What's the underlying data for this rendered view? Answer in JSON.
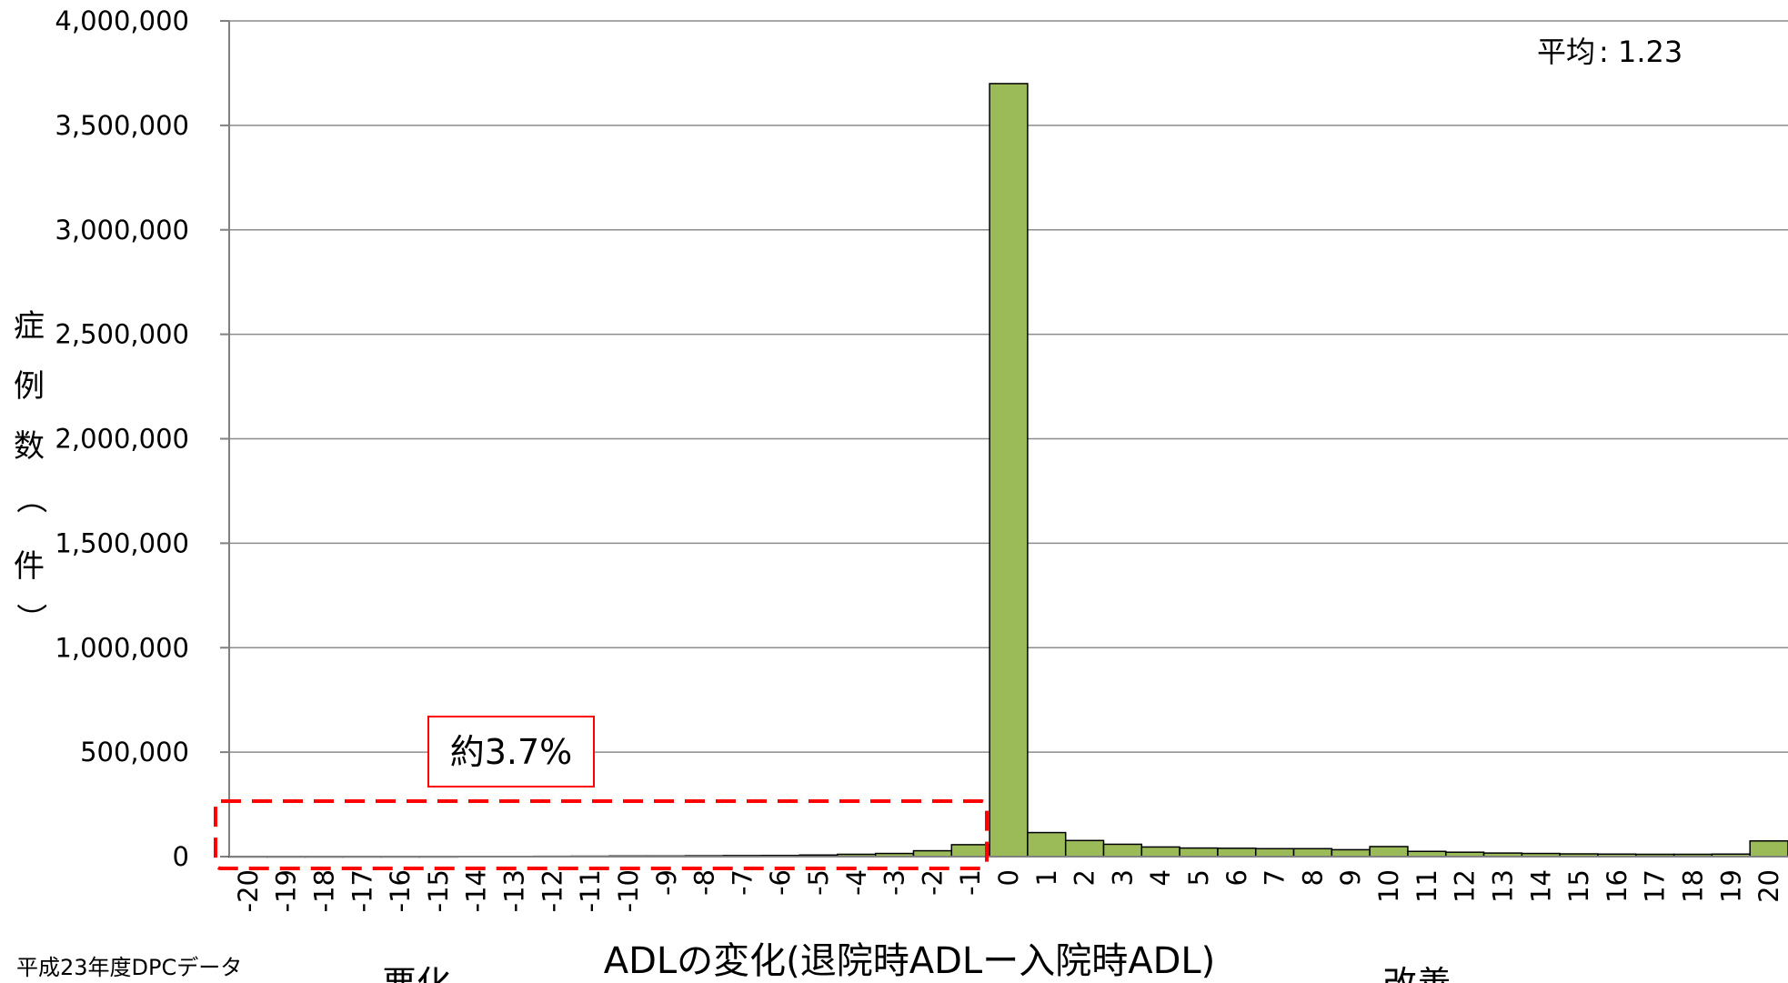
{
  "chart_data": {
    "type": "bar",
    "categories": [
      "-20",
      "-19",
      "-18",
      "-17",
      "-16",
      "-15",
      "-14",
      "-13",
      "-12",
      "-11",
      "-10",
      "-9",
      "-8",
      "-7",
      "-6",
      "-5",
      "-4",
      "-3",
      "-2",
      "-1",
      "0",
      "1",
      "2",
      "3",
      "4",
      "5",
      "6",
      "7",
      "8",
      "9",
      "10",
      "11",
      "12",
      "13",
      "14",
      "15",
      "16",
      "17",
      "18",
      "19",
      "20"
    ],
    "values": [
      500,
      400,
      400,
      500,
      500,
      500,
      1000,
      1000,
      1500,
      2000,
      3000,
      3000,
      4000,
      5000,
      5500,
      7500,
      11000,
      15000,
      28000,
      57000,
      3700000,
      115000,
      77000,
      59000,
      46000,
      41000,
      40000,
      38000,
      38000,
      33000,
      48000,
      25000,
      21000,
      17000,
      15000,
      13000,
      12000,
      11000,
      11000,
      12000,
      75000
    ],
    "ylim": [
      0,
      4000000
    ],
    "y_ticks": [
      "0",
      "500,000",
      "1,000,000",
      "1,500,000",
      "2,000,000",
      "2,500,000",
      "3,000,000",
      "3,500,000",
      "4,000,000"
    ],
    "ylabel": "症例数（件）",
    "xlabel": "ADLの変化(退院時ADLー入院時ADL)",
    "grid": true,
    "bar_color": "#9BBB59",
    "bar_edge_color": "#000000",
    "annotations": {
      "mean_label": "平均",
      "mean_value": "1.23",
      "percent_box": "約3.7%",
      "worse_label": "悪化",
      "improve_label": "改善"
    },
    "source_note": "平成23年度DPCデータ",
    "highlight_color": "#FF0000"
  }
}
